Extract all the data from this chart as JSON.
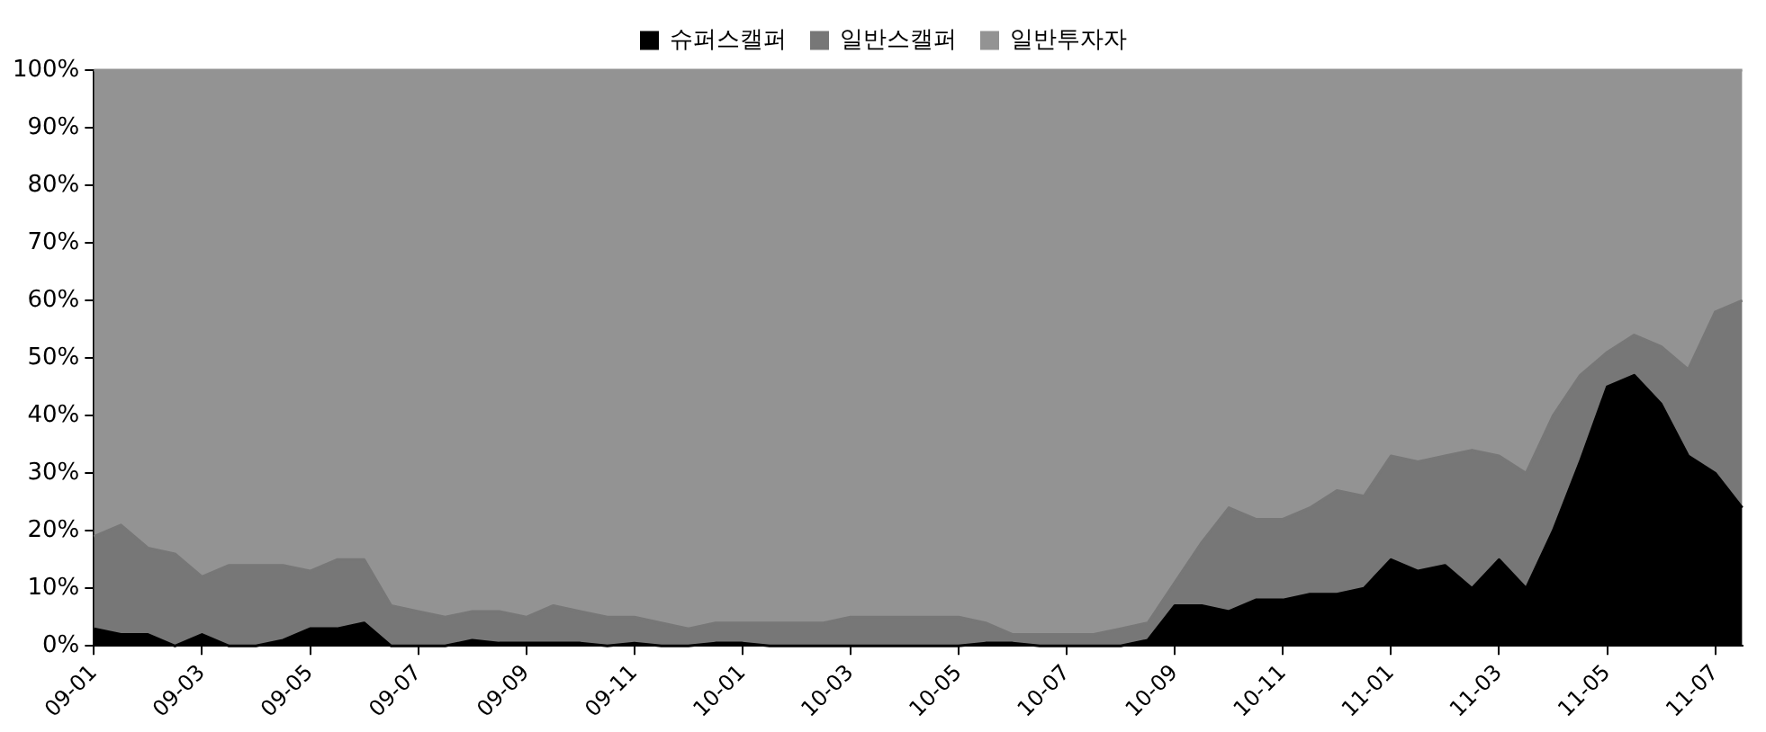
{
  "chart_data": {
    "type": "area",
    "stacked": true,
    "legend": "top",
    "categories": [
      "09-01",
      null,
      null,
      null,
      "09-03",
      null,
      null,
      null,
      "09-05",
      null,
      null,
      null,
      "09-07",
      null,
      null,
      null,
      "09-09",
      null,
      null,
      null,
      "09-11",
      null,
      null,
      null,
      "10-01",
      null,
      null,
      null,
      "10-03",
      null,
      null,
      null,
      "10-05",
      null,
      null,
      null,
      "10-07",
      null,
      null,
      null,
      "10-09",
      null,
      null,
      null,
      "10-11",
      null,
      null,
      null,
      "11-01",
      null,
      null,
      null,
      "11-03",
      null,
      null,
      null,
      "11-05",
      null,
      null,
      null,
      "11-07",
      null
    ],
    "series": [
      {
        "name": "슈퍼스캘퍼",
        "color": "#000000",
        "values": [
          3,
          2,
          2,
          0,
          2,
          0,
          0,
          1,
          3,
          3,
          4,
          0,
          0,
          0,
          1,
          0.5,
          0.5,
          0.5,
          0.5,
          0,
          0.5,
          0,
          0,
          0.5,
          0.5,
          0,
          0,
          0,
          0,
          0,
          0,
          0,
          0,
          0.5,
          0.5,
          0,
          0,
          0,
          0,
          1,
          7,
          7,
          6,
          8,
          8,
          9,
          9,
          10,
          15,
          13,
          14,
          10,
          15,
          10,
          20,
          32,
          45,
          47,
          42,
          33,
          30,
          24
        ]
      },
      {
        "name": "일반스캘퍼",
        "color": "#777777",
        "values": [
          16,
          19,
          15,
          16,
          10,
          14,
          14,
          13,
          10,
          12,
          11,
          7,
          6,
          5,
          5,
          5.5,
          4.5,
          6.5,
          5.5,
          5,
          4.5,
          4,
          3,
          3.5,
          3.5,
          4,
          4,
          4,
          5,
          5,
          5,
          5,
          5,
          3.5,
          1.5,
          2,
          2,
          2,
          3,
          3,
          4,
          11,
          18,
          14,
          14,
          15,
          18,
          16,
          18,
          19,
          19,
          24,
          18,
          20,
          20,
          15,
          6,
          7,
          10,
          15,
          28,
          36
        ]
      },
      {
        "name": "일반투자자",
        "color": "#939393",
        "values": [
          81,
          79,
          83,
          84,
          88,
          86,
          86,
          86,
          87,
          85,
          85,
          93,
          94,
          95,
          94,
          94,
          95,
          93,
          94,
          95,
          95,
          96,
          97,
          96,
          96,
          96,
          96,
          96,
          95,
          95,
          95,
          95,
          95,
          96,
          98,
          98,
          98,
          98,
          97,
          96,
          89,
          82,
          76,
          78,
          78,
          76,
          73,
          74,
          67,
          68,
          67,
          66,
          67,
          70,
          60,
          53,
          49,
          46,
          48,
          52,
          42,
          40
        ]
      }
    ],
    "ylim": [
      0,
      100
    ],
    "yticks": [
      {
        "value": 0,
        "label": "0%"
      },
      {
        "value": 10,
        "label": "10%"
      },
      {
        "value": 20,
        "label": "20%"
      },
      {
        "value": 30,
        "label": "30%"
      },
      {
        "value": 40,
        "label": "40%"
      },
      {
        "value": 50,
        "label": "50%"
      },
      {
        "value": 60,
        "label": "60%"
      },
      {
        "value": 70,
        "label": "70%"
      },
      {
        "value": 80,
        "label": "80%"
      },
      {
        "value": 90,
        "label": "90%"
      },
      {
        "value": 100,
        "label": "100%"
      }
    ]
  }
}
